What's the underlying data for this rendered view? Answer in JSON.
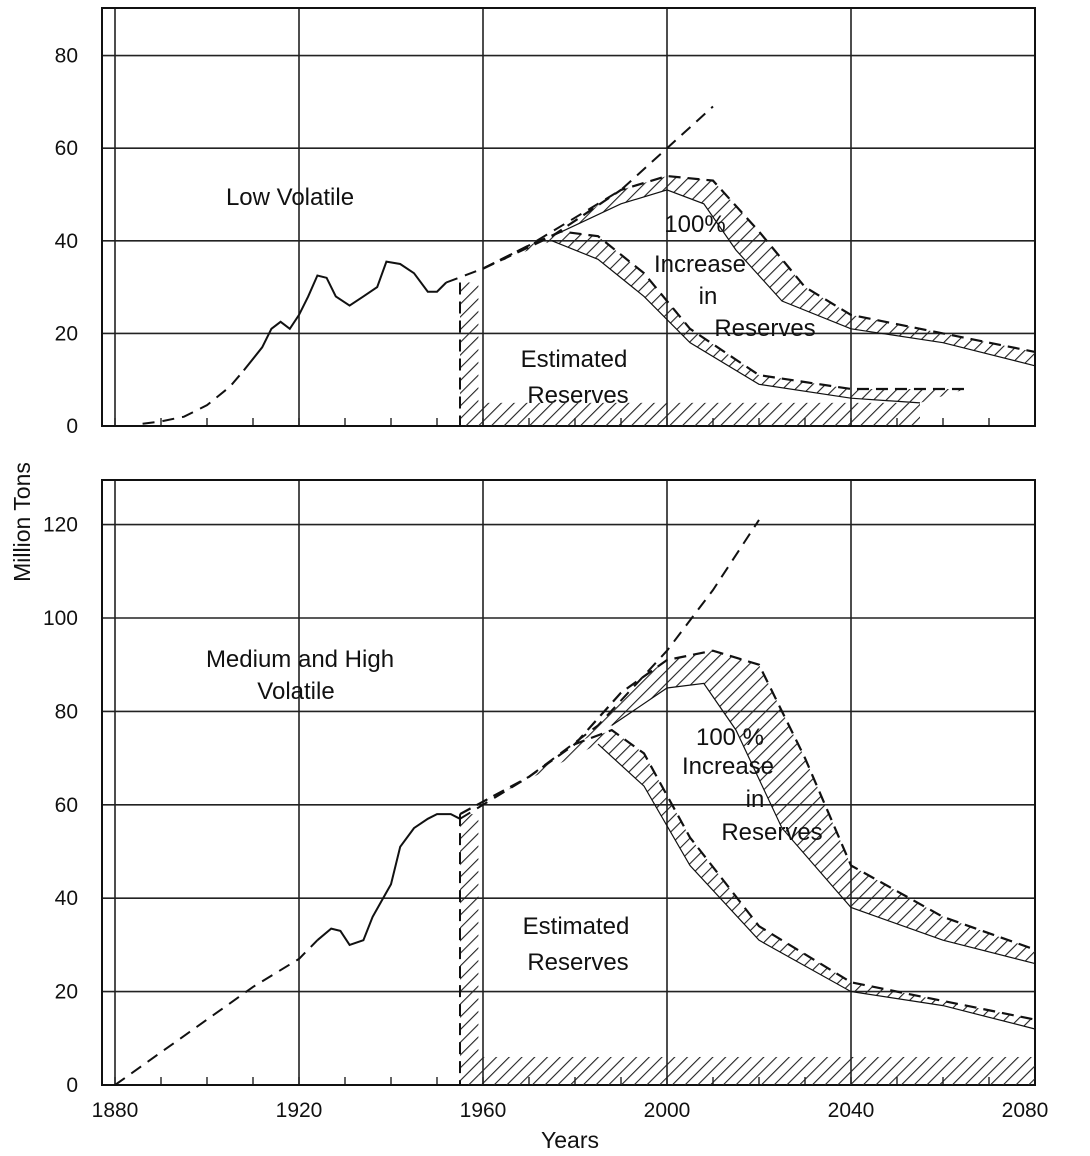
{
  "figure": {
    "ylabel": "Million Tons",
    "xlabel": "Years"
  },
  "chart_data": [
    {
      "type": "line",
      "title": "",
      "panel_label": "Low Volatile",
      "xlabel": "Years",
      "ylabel": "Million Tons",
      "xlim": [
        1880,
        2080
      ],
      "ylim": [
        0,
        90
      ],
      "x_ticks": [
        "1880",
        "1920",
        "1960",
        "2000",
        "2040",
        "2080"
      ],
      "y_ticks": [
        "0",
        "20",
        "40",
        "60",
        "80"
      ],
      "y_tick_values": [
        0,
        20,
        40,
        60,
        80
      ],
      "grid": true,
      "annotations": {
        "estimated": [
          "Estimated",
          "Reserves"
        ],
        "increase": [
          "100%",
          "Increase",
          "in",
          "Reserves"
        ]
      },
      "series": [
        {
          "style": "historical",
          "points": [
            [
              1886,
              0.5
            ],
            [
              1890,
              1
            ],
            [
              1895,
              2
            ],
            [
              1900,
              4.5
            ],
            [
              1905,
              8.5
            ],
            [
              1908,
              12
            ],
            [
              1912,
              17
            ],
            [
              1914,
              21
            ],
            [
              1916,
              22.5
            ],
            [
              1918,
              21
            ],
            [
              1920,
              24
            ],
            [
              1922,
              28
            ],
            [
              1924,
              32.5
            ],
            [
              1926,
              32
            ],
            [
              1928,
              28
            ],
            [
              1931,
              26
            ],
            [
              1934,
              28
            ],
            [
              1937,
              30
            ],
            [
              1939,
              35.5
            ],
            [
              1942,
              35
            ],
            [
              1945,
              33
            ],
            [
              1948,
              29
            ],
            [
              1950,
              29
            ],
            [
              1952,
              31
            ]
          ]
        },
        {
          "style": "dashed_trend",
          "points": [
            [
              1952,
              31
            ],
            [
              1960,
              34
            ],
            [
              1970,
              39
            ],
            [
              1980,
              45
            ],
            [
              1990,
              51
            ],
            [
              2000,
              60
            ],
            [
              2010,
              69
            ]
          ]
        },
        {
          "style": "increase_peak_upper",
          "points": [
            [
              1960,
              34
            ],
            [
              1975,
              41
            ],
            [
              1990,
              51
            ],
            [
              2000,
              54
            ],
            [
              2010,
              53
            ],
            [
              2020,
              42
            ],
            [
              2030,
              30
            ],
            [
              2040,
              24
            ],
            [
              2060,
              20
            ],
            [
              2080,
              16
            ]
          ]
        },
        {
          "style": "increase_peak_lower",
          "points": [
            [
              1975,
              41
            ],
            [
              1990,
              48
            ],
            [
              2000,
              51
            ],
            [
              2008,
              48
            ],
            [
              2015,
              38
            ],
            [
              2025,
              27
            ],
            [
              2040,
              21
            ],
            [
              2060,
              18
            ],
            [
              2080,
              13
            ]
          ]
        },
        {
          "style": "estimated_upper",
          "points": [
            [
              1960,
              34
            ],
            [
              1970,
              39
            ],
            [
              1977,
              42
            ],
            [
              1985,
              41
            ],
            [
              1995,
              33
            ],
            [
              2005,
              21
            ],
            [
              2020,
              11
            ],
            [
              2040,
              8
            ],
            [
              2065,
              8
            ]
          ]
        },
        {
          "style": "estimated_lower",
          "points": [
            [
              1975,
              40
            ],
            [
              1985,
              36
            ],
            [
              1995,
              28
            ],
            [
              2005,
              18
            ],
            [
              2020,
              9
            ],
            [
              2040,
              6
            ],
            [
              2055,
              5
            ]
          ]
        }
      ]
    },
    {
      "type": "line",
      "title": "",
      "panel_label": "Medium and High Volatile",
      "xlabel": "Years",
      "ylabel": "Million Tons",
      "xlim": [
        1880,
        2080
      ],
      "ylim": [
        0,
        130
      ],
      "x_ticks": [
        "1880",
        "1920",
        "1960",
        "2000",
        "2040",
        "2080"
      ],
      "y_ticks": [
        "0",
        "20",
        "40",
        "60",
        "80",
        "100",
        "120"
      ],
      "y_tick_values": [
        0,
        20,
        40,
        60,
        80,
        100,
        120
      ],
      "grid": true,
      "annotations": {
        "estimated": [
          "Estimated",
          "Reserves"
        ],
        "increase": [
          "100 %",
          "Increase",
          "in",
          "Reserves"
        ]
      },
      "series": [
        {
          "style": "historical",
          "points": [
            [
              1880,
              0
            ],
            [
              1890,
              7
            ],
            [
              1900,
              14
            ],
            [
              1910,
              21
            ],
            [
              1920,
              27
            ],
            [
              1924,
              31
            ],
            [
              1927,
              33.5
            ],
            [
              1929,
              33
            ],
            [
              1931,
              30
            ],
            [
              1934,
              31
            ],
            [
              1936,
              36
            ],
            [
              1940,
              43
            ],
            [
              1942,
              51
            ],
            [
              1945,
              55
            ],
            [
              1948,
              57
            ],
            [
              1950,
              58
            ],
            [
              1953,
              58
            ],
            [
              1955,
              57
            ]
          ]
        },
        {
          "style": "dashed_trend",
          "points": [
            [
              1955,
              57
            ],
            [
              1970,
              66
            ],
            [
              1985,
              77
            ],
            [
              2000,
              93
            ],
            [
              2010,
              106
            ],
            [
              2020,
              121
            ]
          ]
        },
        {
          "style": "increase_peak_upper",
          "points": [
            [
              1980,
              73
            ],
            [
              1990,
              84
            ],
            [
              2000,
              91
            ],
            [
              2010,
              93
            ],
            [
              2020,
              90
            ],
            [
              2030,
              70
            ],
            [
              2040,
              47
            ],
            [
              2060,
              36
            ],
            [
              2080,
              29
            ]
          ]
        },
        {
          "style": "increase_peak_lower",
          "points": [
            [
              1988,
              77
            ],
            [
              2000,
              85
            ],
            [
              2008,
              86
            ],
            [
              2015,
              76
            ],
            [
              2025,
              55
            ],
            [
              2040,
              38
            ],
            [
              2060,
              31
            ],
            [
              2080,
              26
            ]
          ]
        },
        {
          "style": "estimated_upper",
          "points": [
            [
              1955,
              58
            ],
            [
              1970,
              66
            ],
            [
              1980,
              73
            ],
            [
              1988,
              76
            ],
            [
              1995,
              71
            ],
            [
              2005,
              53
            ],
            [
              2020,
              34
            ],
            [
              2040,
              22
            ],
            [
              2080,
              14
            ]
          ]
        },
        {
          "style": "estimated_lower",
          "points": [
            [
              1985,
              73
            ],
            [
              1995,
              64
            ],
            [
              2005,
              47
            ],
            [
              2020,
              31
            ],
            [
              2040,
              20
            ],
            [
              2060,
              17
            ],
            [
              2080,
              12
            ]
          ]
        }
      ]
    }
  ]
}
